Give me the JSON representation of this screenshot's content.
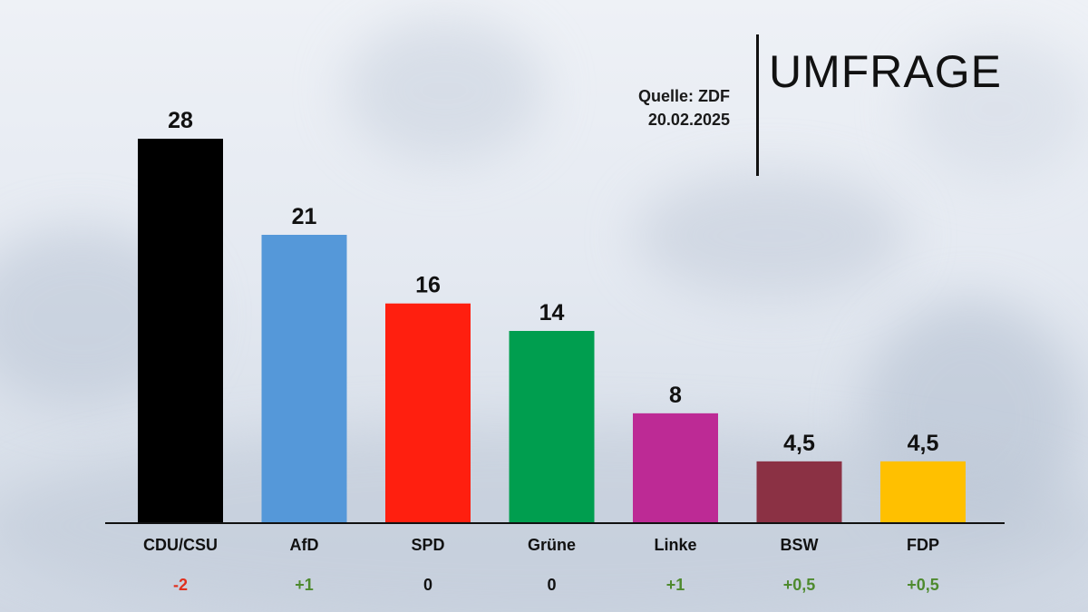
{
  "header": {
    "title": "UMFRAGE",
    "source": "Quelle: ZDF",
    "date": "20.02.2025"
  },
  "chart_data": {
    "type": "bar",
    "categories": [
      "CDU/CSU",
      "AfD",
      "SPD",
      "Grüne",
      "Linke",
      "BSW",
      "FDP"
    ],
    "values": [
      28,
      21,
      16,
      14,
      8,
      4.5,
      4.5
    ],
    "value_labels": [
      "28",
      "21",
      "16",
      "14",
      "8",
      "4,5",
      "4,5"
    ],
    "changes": [
      "-2",
      "+1",
      "0",
      "0",
      "+1",
      "+0,5",
      "+0,5"
    ],
    "colors": [
      "#000000",
      "#5598d9",
      "#ff1f0f",
      "#009e4f",
      "#bd2a95",
      "#8b3144",
      "#ffc000"
    ],
    "change_colors": {
      "negative": "#e0301e",
      "positive": "#4e8a2e",
      "neutral": "#111111"
    },
    "ylim": [
      0,
      28
    ],
    "grid": false
  }
}
